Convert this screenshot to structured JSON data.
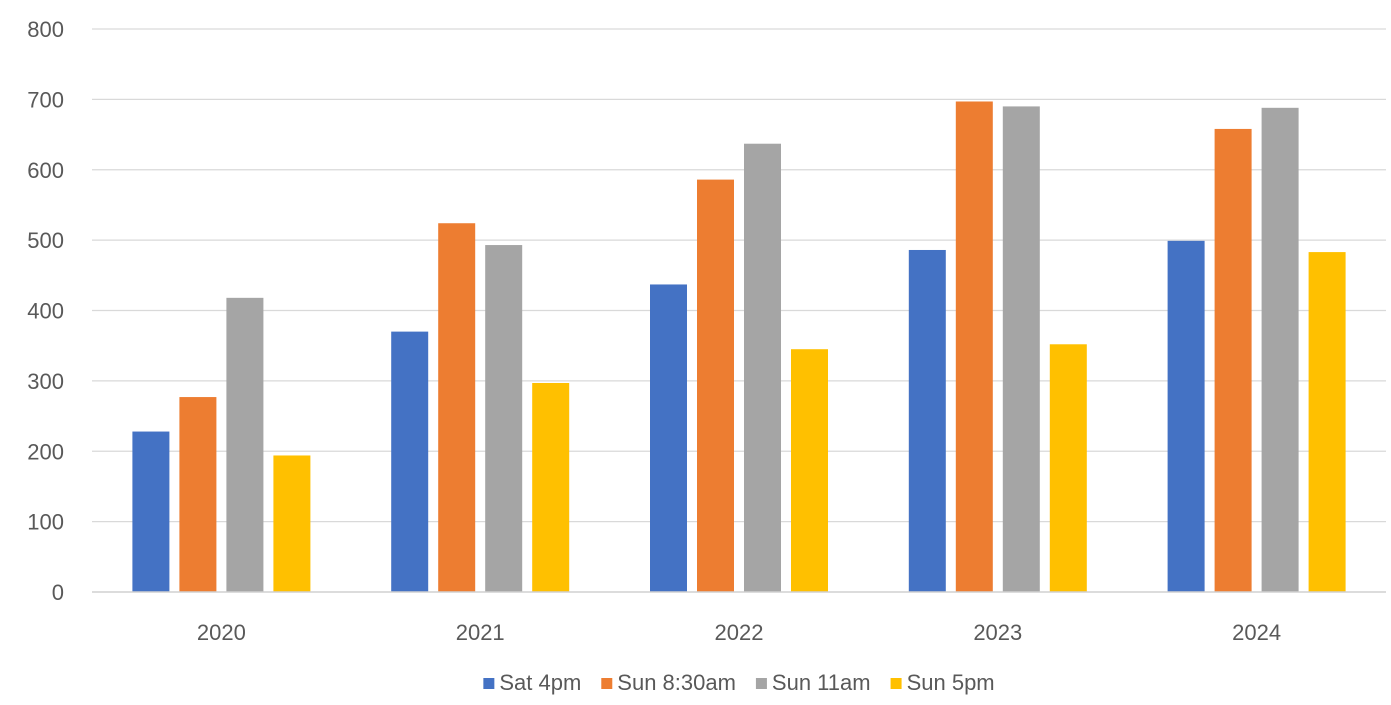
{
  "chart_data": {
    "type": "bar",
    "title": "",
    "xlabel": "",
    "ylabel": "",
    "categories": [
      "2020",
      "2021",
      "2022",
      "2023",
      "2024"
    ],
    "ylim": [
      0,
      800
    ],
    "yticks": [
      0,
      100,
      200,
      300,
      400,
      500,
      600,
      700,
      800
    ],
    "ytick_labels": [
      "0",
      "100",
      "200",
      "300",
      "400",
      "500",
      "600",
      "700",
      "800"
    ],
    "grid": true,
    "legend_position": "bottom",
    "series": [
      {
        "name": "Sat 4pm",
        "color": "#4472c4",
        "values": [
          228,
          370,
          437,
          486,
          499
        ]
      },
      {
        "name": "Sun 8:30am",
        "color": "#ed7d31",
        "values": [
          277,
          524,
          586,
          697,
          658
        ]
      },
      {
        "name": "Sun 11am",
        "color": "#a5a5a5",
        "values": [
          418,
          493,
          637,
          690,
          688
        ]
      },
      {
        "name": "Sun 5pm",
        "color": "#ffc000",
        "values": [
          194,
          297,
          345,
          352,
          483
        ]
      }
    ]
  }
}
